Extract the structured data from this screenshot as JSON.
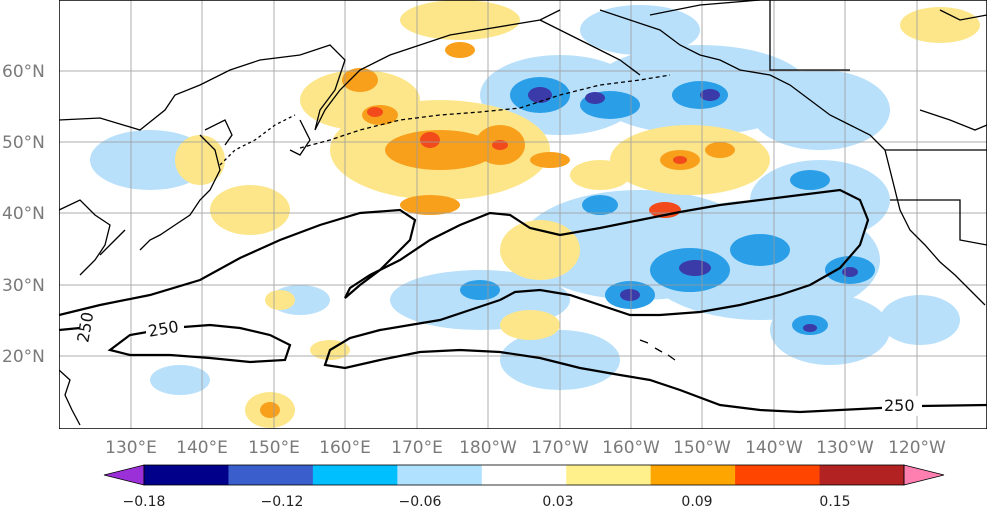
{
  "map": {
    "lat_labels": [
      "60°N",
      "50°N",
      "40°N",
      "30°N",
      "20°N"
    ],
    "lon_labels": [
      "130°E",
      "140°E",
      "150°E",
      "160°E",
      "170°E",
      "180°W",
      "170°W",
      "160°W",
      "150°W",
      "140°W",
      "130°W",
      "120°W"
    ],
    "contour_labels": [
      "250",
      "250",
      "250"
    ],
    "colorbar": {
      "tick_labels": [
        "−0.18",
        "−0.12",
        "−0.06",
        "0.03",
        "0.09",
        "0.15"
      ],
      "colors": [
        "#9b30d9",
        "#00008b",
        "#3a5fcd",
        "#00bfff",
        "#b0e2ff",
        "#ffffff",
        "#fff08c",
        "#ffa500",
        "#ff4500",
        "#b22222",
        "#ff7fb0"
      ]
    },
    "colors": {
      "negative_dark": "#4a2ca8",
      "negative_mid": "#2a7fd8",
      "negative_light": "#b8e0fb",
      "positive_light": "#fde68a",
      "positive_mid": "#f8a01c",
      "positive_strong": "#f24a1a",
      "contour": "#000000",
      "grid": "#9a9a9a"
    }
  }
}
